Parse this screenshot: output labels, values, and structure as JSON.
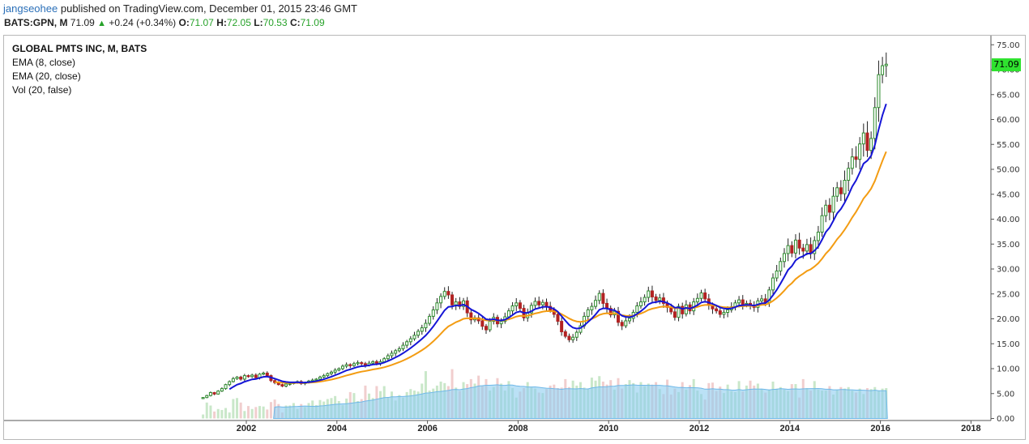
{
  "header": {
    "author": "jangseohee",
    "published_text": "published on TradingView.com, December 01, 2015 23:46 GMT"
  },
  "quote": {
    "symbol": "BATS:GPN, M",
    "last": "71.09",
    "change": "+0.24 (+0.34%)",
    "o_label": "O:",
    "o": "71.07",
    "h_label": "H:",
    "h": "72.05",
    "l_label": "L:",
    "l": "70.53",
    "c_label": "C:",
    "c": "71.09"
  },
  "legend": {
    "title": "GLOBAL PMTS INC, M, BATS",
    "ema8": "EMA (8, close)",
    "ema20": "EMA (20, close)",
    "vol": "Vol (20, false)"
  },
  "price_tag": "71.09",
  "colors": {
    "up": "#2e8b2e",
    "down": "#b22222",
    "ema8": "#1515d6",
    "ema20": "#f39c12",
    "vol_up": "#bfe3bf",
    "vol_down": "#efc6c6",
    "vol_ma": "#8ecdf0",
    "tag": "#2fe22f"
  },
  "chart_data": {
    "type": "candlestick",
    "interval": "monthly",
    "title": "GLOBAL PMTS INC, M, BATS",
    "y_ticks": [
      "75.00",
      "70.00",
      "65.00",
      "60.00",
      "55.00",
      "50.00",
      "45.00",
      "40.00",
      "35.00",
      "30.00",
      "25.00",
      "20.00",
      "15.00",
      "10.00",
      "5.00",
      "0.00"
    ],
    "y_tick_values": [
      75,
      70,
      65,
      60,
      55,
      50,
      45,
      40,
      35,
      30,
      25,
      20,
      15,
      10,
      5,
      0
    ],
    "x_ticks": [
      "2002",
      "2004",
      "2006",
      "2008",
      "2010",
      "2012",
      "2014",
      "2016",
      "2018"
    ],
    "x_tick_years": [
      2002,
      2004,
      2006,
      2008,
      2010,
      2012,
      2014,
      2016,
      2018
    ],
    "ylim": [
      0,
      75
    ],
    "start": 2001.0,
    "step": 0.0833333,
    "close": [
      4.2,
      4.6,
      5.2,
      4.9,
      5.5,
      6.0,
      6.8,
      7.4,
      8.0,
      8.3,
      7.9,
      8.6,
      8.4,
      8.7,
      8.2,
      8.9,
      9.1,
      8.6,
      7.6,
      7.2,
      6.8,
      6.5,
      6.9,
      7.0,
      7.2,
      7.4,
      7.0,
      7.2,
      7.5,
      7.7,
      7.9,
      8.3,
      8.6,
      9.0,
      9.3,
      9.7,
      10.0,
      10.5,
      10.8,
      10.6,
      11.0,
      11.2,
      11.0,
      10.7,
      11.1,
      11.4,
      11.1,
      11.4,
      12.0,
      12.6,
      13.1,
      13.6,
      14.0,
      14.7,
      15.4,
      16.0,
      16.7,
      17.5,
      18.2,
      19.1,
      20.5,
      21.8,
      23.2,
      24.5,
      25.5,
      24.8,
      22.8,
      23.4,
      22.5,
      23.6,
      21.2,
      19.8,
      20.2,
      19.6,
      18.5,
      17.8,
      19.5,
      20.3,
      19.0,
      19.5,
      20.4,
      21.6,
      22.6,
      23.2,
      22.1,
      20.2,
      21.2,
      22.7,
      23.5,
      22.8,
      23.3,
      22.5,
      21.8,
      20.9,
      19.5,
      17.4,
      16.5,
      15.8,
      16.3,
      17.3,
      18.6,
      20.5,
      21.8,
      22.5,
      23.7,
      25.1,
      23.1,
      22.1,
      20.8,
      21.5,
      19.3,
      18.6,
      19.6,
      20.1,
      21.3,
      22.6,
      23.4,
      24.3,
      25.6,
      24.4,
      23.7,
      24.2,
      23.1,
      22.3,
      21.4,
      20.3,
      22.5,
      21.0,
      22.8,
      21.6,
      23.4,
      24.1,
      25.2,
      24.0,
      22.7,
      22.0,
      21.6,
      20.9,
      21.3,
      21.8,
      22.4,
      23.2,
      23.8,
      22.9,
      23.1,
      22.6,
      22.3,
      23.6,
      24.0,
      23.3,
      25.8,
      28.2,
      29.6,
      31.5,
      33.1,
      34.7,
      33.2,
      35.8,
      34.2,
      33.6,
      34.9,
      33.1,
      35.7,
      37.4,
      40.7,
      42.8,
      41.4,
      44.6,
      46.3,
      45.1,
      47.8,
      50.2,
      52.5,
      52.0,
      55.1,
      57.3,
      53.8,
      56.2,
      62.4,
      69.0,
      70.8,
      71.1
    ],
    "volume": [
      0.8,
      3.2,
      2.6,
      1.4,
      1.9,
      1.7,
      2.1,
      1.2,
      3.9,
      4.1,
      3.2,
      1.5,
      2.5,
      1.9,
      2.3,
      2.5,
      2.4,
      1.8,
      3.3,
      3.8,
      2.9,
      1.2,
      2.6,
      2.6,
      3.1,
      1.9,
      2.9,
      2.3,
      3.1,
      3.6,
      2.7,
      3.7,
      3.4,
      3.9,
      4.1,
      4.5,
      3.5,
      2.7,
      4.0,
      5.3,
      5.1,
      3.5,
      3.9,
      6.6,
      5.0,
      4.1,
      6.5,
      5.5,
      6.5,
      4.3,
      5.4,
      3.6,
      4.7,
      4.2,
      5.3,
      5.9,
      5.6,
      5.4,
      7.0,
      9.5,
      5.6,
      6.0,
      6.6,
      7.4,
      7.1,
      6.5,
      9.9,
      6.2,
      5.5,
      7.3,
      6.9,
      7.9,
      7.0,
      8.6,
      6.6,
      7.9,
      5.6,
      6.3,
      8.1,
      7.0,
      5.6,
      7.5,
      6.1,
      4.2,
      5.4,
      6.1,
      7.3,
      6.3,
      6.0,
      5.2,
      5.1,
      5.9,
      6.6,
      6.8,
      6.1,
      6.2,
      7.9,
      6.3,
      7.6,
      6.6,
      7.3,
      6.2,
      6.0,
      8.2,
      7.6,
      8.5,
      7.4,
      6.8,
      7.7,
      5.8,
      8.1,
      6.0,
      6.9,
      7.7,
      7.1,
      5.2,
      7.3,
      6.5,
      7.0,
      6.8,
      7.3,
      5.9,
      4.9,
      7.8,
      4.8,
      6.0,
      5.3,
      7.3,
      5.8,
      6.7,
      7.9,
      5.6,
      4.9,
      3.8,
      7.1,
      7.2,
      5.5,
      6.4,
      5.1,
      6.8,
      5.5,
      5.3,
      7.5,
      5.4,
      6.6,
      7.6,
      6.6,
      7.0,
      5.9,
      5.2,
      5.8,
      7.4,
      6.0,
      6.3,
      5.8,
      5.5,
      6.9,
      6.9,
      4.2,
      7.9,
      6.1,
      5.6,
      7.5,
      5.8,
      5.6,
      5.6,
      6.5,
      4.8,
      5.7,
      6.3,
      6.0,
      6.3,
      5.6,
      5.2,
      6.0,
      4.9,
      6.1,
      5.9,
      6.3,
      5.6,
      6.0,
      6.1
    ],
    "ema8_start_index": 7,
    "ema20_start_index": 19,
    "vol_ma_start_index": 19
  }
}
